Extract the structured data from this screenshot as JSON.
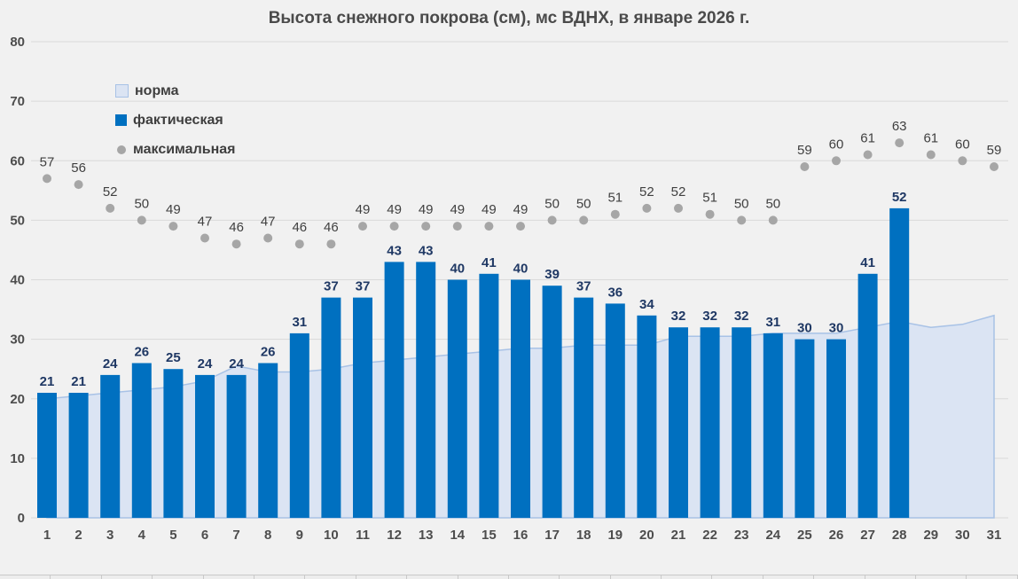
{
  "chart_data": {
    "type": "combo",
    "title": "Высота снежного покрова (см), мс ВДНХ, в январе 2026 г.",
    "categories": [
      1,
      2,
      3,
      4,
      5,
      6,
      7,
      8,
      9,
      10,
      11,
      12,
      13,
      14,
      15,
      16,
      17,
      18,
      19,
      20,
      21,
      22,
      23,
      24,
      25,
      26,
      27,
      28,
      29,
      30,
      31
    ],
    "series": [
      {
        "name": "норма",
        "chart_type": "area",
        "values": [
          20,
          20.5,
          21,
          21.5,
          22,
          23,
          25.5,
          24.5,
          24.5,
          25,
          26,
          26.5,
          27,
          27.5,
          28,
          28.5,
          28.5,
          29,
          29,
          29,
          30.5,
          30.5,
          30.5,
          31,
          31,
          31,
          32,
          33,
          32,
          32.5,
          34
        ]
      },
      {
        "name": "фактическая",
        "chart_type": "bar",
        "values": [
          21,
          21,
          24,
          26,
          25,
          24,
          24,
          26,
          31,
          37,
          37,
          43,
          43,
          40,
          41,
          40,
          39,
          37,
          36,
          34,
          32,
          32,
          32,
          31,
          30,
          30,
          41,
          52,
          null,
          null,
          null
        ]
      },
      {
        "name": "максимальная",
        "chart_type": "scatter",
        "values": [
          57,
          56,
          52,
          50,
          49,
          47,
          46,
          47,
          46,
          46,
          49,
          49,
          49,
          49,
          49,
          49,
          50,
          50,
          51,
          52,
          52,
          51,
          50,
          50,
          59,
          60,
          61,
          63,
          61,
          60,
          59
        ]
      }
    ],
    "xlabel": "",
    "ylabel": "",
    "ylim": [
      0,
      80
    ],
    "ytick_step": 10,
    "grid": true,
    "legend_position": "upper-left",
    "data_labels": true
  },
  "colors": {
    "background": "#f1f1f1",
    "gridline": "#d9d9d9",
    "bar": "#0070c0",
    "bar_label": "#1f3864",
    "area_fill": "#dbe4f3",
    "area_stroke": "#a8c2e6",
    "dot": "#a6a6a6",
    "dot_label": "#404040",
    "axis_label": "#4d4d4d",
    "title": "#4a4a4a",
    "legend_text": "#3f3f3f"
  }
}
